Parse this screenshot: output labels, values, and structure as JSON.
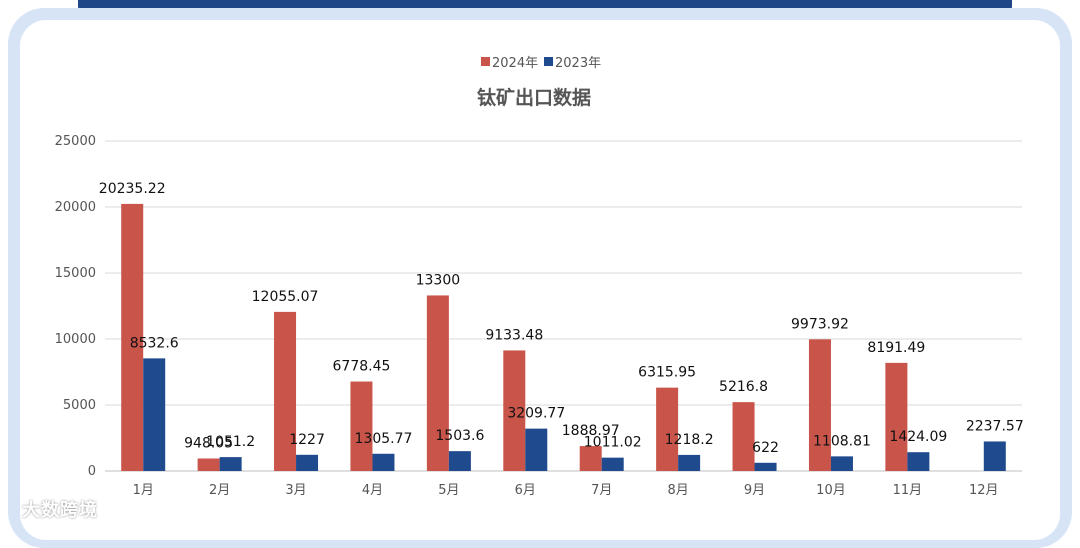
{
  "chart_data": {
    "type": "bar",
    "title": "钛矿出口数据",
    "categories": [
      "1月",
      "2月",
      "3月",
      "4月",
      "5月",
      "6月",
      "7月",
      "8月",
      "9月",
      "10月",
      "11月",
      "12月"
    ],
    "series": [
      {
        "name": "2024年",
        "color": "#c9544a",
        "values": [
          20235.22,
          948.05,
          12055.07,
          6778.45,
          13300,
          9133.48,
          1888.97,
          6315.95,
          5216.8,
          9973.92,
          8191.49,
          null
        ],
        "labels": [
          "20235.22",
          "948.05",
          "12055.07",
          "6778.45",
          "13300",
          "9133.48",
          "1888.97",
          "6315.95",
          "5216.8",
          "9973.92",
          "8191.49",
          ""
        ]
      },
      {
        "name": "2023年",
        "color": "#1f4a8e",
        "values": [
          8532.6,
          1051.2,
          1227,
          1305.77,
          1503.6,
          3209.77,
          1011.02,
          1218.2,
          622,
          1108.81,
          1424.09,
          2237.57
        ],
        "labels": [
          "8532.6",
          "1051.2",
          "1227",
          "1305.77",
          "1503.6",
          "3209.77",
          "1011.02",
          "1218.2",
          "622",
          "1108.81",
          "1424.09",
          "2237.57"
        ]
      }
    ],
    "yticks": [
      "0",
      "5000",
      "10000",
      "15000",
      "20000",
      "25000"
    ],
    "ylim": [
      0,
      25000
    ],
    "grid": true,
    "legend_position": "top-center"
  },
  "watermark": "大数跨境",
  "colors": {
    "frame": "#d6e4f6",
    "top_bar": "#1f4788",
    "grid": "#d9d9d9"
  }
}
